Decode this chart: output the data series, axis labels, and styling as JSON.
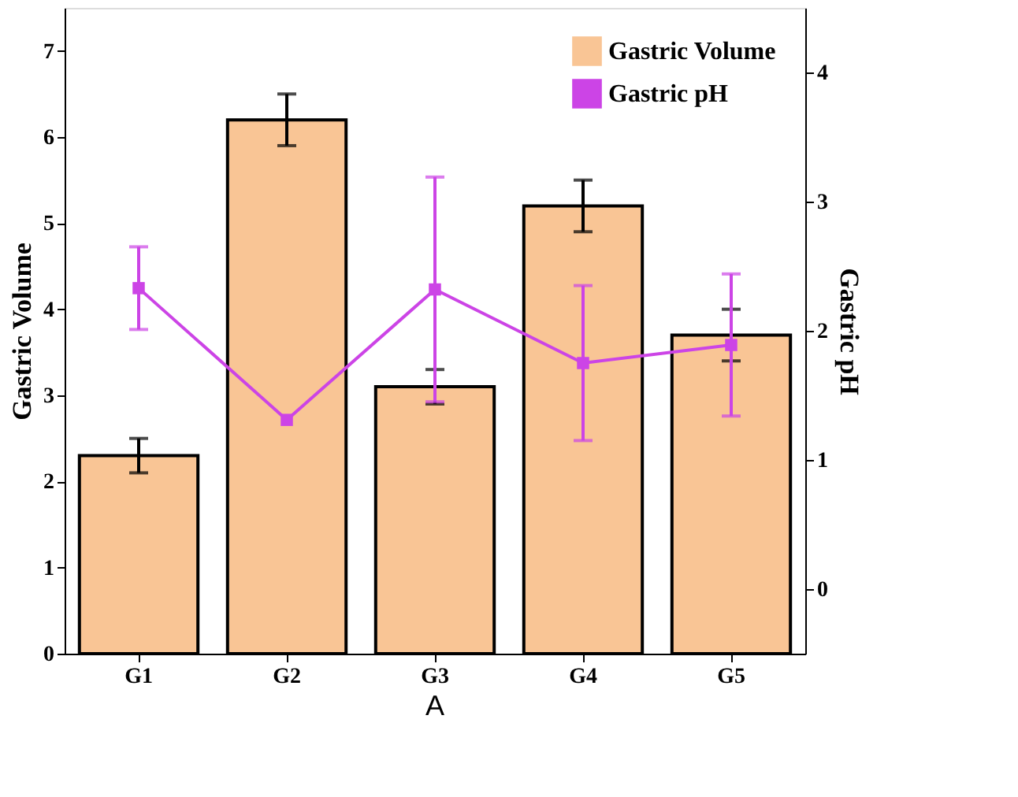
{
  "chart_data": {
    "type": "bar",
    "categories": [
      "G1",
      "G2",
      "G3",
      "G4",
      "G5"
    ],
    "ylabel": "Gastric Volume",
    "y2label": "Gastric pH",
    "series": [
      {
        "name": "Gastric Volume",
        "color": "#f9c595",
        "values": [
          2.3,
          6.2,
          3.1,
          5.2,
          3.7
        ],
        "errors": [
          0.2,
          0.3,
          0.2,
          0.3,
          0.3
        ]
      },
      {
        "name": "Gastric pH",
        "type": "line",
        "axis": "y2",
        "color": "#cc44e6",
        "values": [
          2.33,
          1.31,
          2.32,
          1.75,
          1.89
        ],
        "errors": [
          0.32,
          null,
          0.87,
          0.6,
          0.55
        ]
      }
    ],
    "ylim": [
      0,
      7.5
    ],
    "yticks": [
      0,
      1,
      2,
      3,
      4,
      5,
      6,
      7
    ],
    "y2lim": [
      -0.5,
      4.5
    ],
    "y2ticks": [
      0,
      1,
      2,
      3,
      4
    ],
    "marker": "square",
    "line_style": "solid",
    "legend": "top right",
    "grid": false,
    "annotations": [
      "A"
    ]
  }
}
